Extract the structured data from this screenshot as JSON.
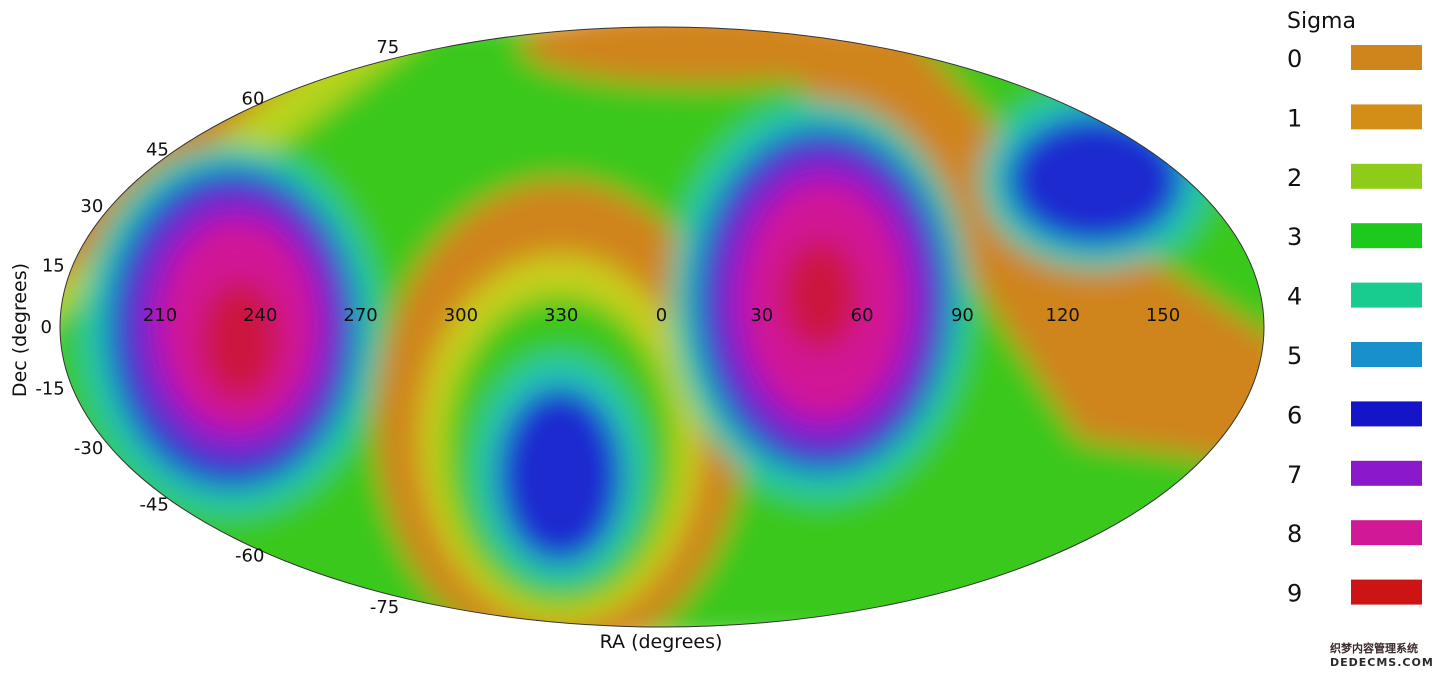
{
  "chart_data": {
    "type": "heatmap",
    "projection": "mollweide",
    "xlabel": "RA (degrees)",
    "ylabel": "Dec (degrees)",
    "ra_tick_labels": [
      "210",
      "240",
      "270",
      "300",
      "330",
      "0",
      "30",
      "60",
      "90",
      "120",
      "150"
    ],
    "dec_tick_labels": [
      "75",
      "60",
      "45",
      "30",
      "15",
      "0",
      "-15",
      "-30",
      "-45",
      "-60",
      "-75"
    ],
    "legend": {
      "title": "Sigma",
      "placement": "right",
      "levels": [
        {
          "label": "0",
          "color": "#d0841c"
        },
        {
          "label": "1",
          "color": "#d38e18"
        },
        {
          "label": "2",
          "color": "#8fcc1a"
        },
        {
          "label": "3",
          "color": "#1cc91c"
        },
        {
          "label": "4",
          "color": "#18cc90"
        },
        {
          "label": "5",
          "color": "#1890cc"
        },
        {
          "label": "6",
          "color": "#1414c8"
        },
        {
          "label": "7",
          "color": "#8c18cc"
        },
        {
          "label": "8",
          "color": "#d11896"
        },
        {
          "label": "9",
          "color": "#cc1414"
        }
      ]
    },
    "features": [
      {
        "ra": 235,
        "dec": 0,
        "peak_sigma": 9
      },
      {
        "ra": 45,
        "dec": 10,
        "peak_sigma": 9
      },
      {
        "ra": 325,
        "dec": -40,
        "peak_sigma": 6
      },
      {
        "ra": 130,
        "dec": 40,
        "peak_sigma": 6
      }
    ]
  },
  "watermark": {
    "line1": "织梦内容管理系统",
    "line2": "DEDECMS.COM"
  }
}
